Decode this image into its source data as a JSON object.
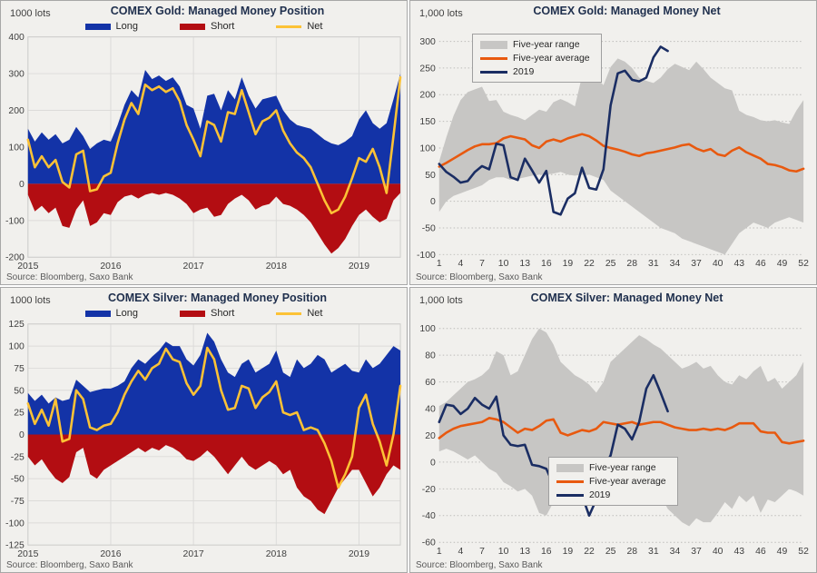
{
  "page": {
    "background": "#ffffff",
    "panel_background": "#f1f0ed",
    "panel_border": "#a7a7a7"
  },
  "colors": {
    "long_blue": "#1333a7",
    "short_red": "#b30d12",
    "net_yellow": "#fcc236",
    "range_gray": "#c7c6c4",
    "avg_orange": "#e8590f",
    "navy_2019": "#1a2d63"
  },
  "chart_data": [
    {
      "type": "area",
      "title": "COMEX Gold: Managed Money Position",
      "unit_label": "1000 lots",
      "source": "Source: Bloomberg, Saxo Bank",
      "grid": "solid",
      "ylim": [
        -200,
        400
      ],
      "y_ticks": [
        400,
        300,
        200,
        100,
        0,
        -100,
        -200
      ],
      "x_ticks": [
        2015,
        2016,
        2017,
        2018,
        2019
      ],
      "x_start": 2015,
      "x_step": 0.0833333,
      "x_end": 2019.5,
      "legend": {
        "style": "row",
        "items": [
          {
            "label": "Long",
            "color": "#1333a7",
            "shape": "box"
          },
          {
            "label": "Short",
            "color": "#b30d12",
            "shape": "box"
          },
          {
            "label": "Net",
            "color": "#fcc236",
            "shape": "line"
          }
        ]
      },
      "series": [
        {
          "name": "Long",
          "kind": "area",
          "color": "#1333a7",
          "values": [
            150,
            115,
            140,
            120,
            135,
            110,
            120,
            155,
            130,
            95,
            110,
            120,
            115,
            160,
            215,
            255,
            235,
            310,
            285,
            295,
            280,
            290,
            265,
            215,
            205,
            150,
            240,
            245,
            200,
            255,
            230,
            290,
            240,
            205,
            230,
            235,
            240,
            200,
            175,
            160,
            155,
            150,
            135,
            120,
            110,
            105,
            115,
            130,
            175,
            200,
            165,
            150,
            165,
            230,
            300
          ]
        },
        {
          "name": "Short",
          "kind": "area",
          "color": "#b30d12",
          "values": [
            -30,
            -75,
            -60,
            -80,
            -65,
            -115,
            -120,
            -70,
            -45,
            -115,
            -105,
            -80,
            -85,
            -50,
            -35,
            -30,
            -40,
            -30,
            -25,
            -30,
            -25,
            -30,
            -40,
            -55,
            -80,
            -70,
            -65,
            -90,
            -85,
            -55,
            -40,
            -30,
            -45,
            -70,
            -60,
            -55,
            -35,
            -55,
            -60,
            -70,
            -85,
            -105,
            -135,
            -165,
            -190,
            -175,
            -150,
            -115,
            -85,
            -70,
            -90,
            -105,
            -95,
            -45,
            -25
          ]
        },
        {
          "name": "Net",
          "kind": "line",
          "color": "#fcc236",
          "width": 2.6,
          "values": [
            120,
            45,
            75,
            45,
            65,
            5,
            -10,
            80,
            90,
            -20,
            -15,
            20,
            30,
            110,
            175,
            220,
            190,
            270,
            255,
            265,
            250,
            260,
            225,
            160,
            120,
            75,
            170,
            160,
            115,
            195,
            190,
            255,
            195,
            135,
            170,
            180,
            200,
            145,
            110,
            85,
            70,
            45,
            0,
            -45,
            -80,
            -70,
            -35,
            15,
            70,
            60,
            95,
            45,
            -25,
            130,
            290
          ]
        }
      ]
    },
    {
      "type": "line",
      "title": "COMEX Gold: Managed Money Net",
      "unit_label": "1,000 lots",
      "source": "Source: Bloomberg, Saxo Bank",
      "grid": "dotted",
      "ylim": [
        -100,
        300
      ],
      "y_ticks": [
        300,
        250,
        200,
        150,
        100,
        50,
        0,
        -50,
        -100
      ],
      "x_ticks": [
        1,
        4,
        7,
        10,
        13,
        16,
        19,
        22,
        25,
        28,
        31,
        34,
        37,
        40,
        43,
        46,
        49,
        52
      ],
      "x_start": 1,
      "x_step": 1,
      "x_end": 52,
      "legend": {
        "style": "box",
        "pos": {
          "left": 68,
          "top": 36
        },
        "items": [
          {
            "label": "Five-year range",
            "color": "#c7c6c4",
            "shape": "box"
          },
          {
            "label": "Five-year average",
            "color": "#e8590f",
            "shape": "line"
          },
          {
            "label": "2019",
            "color": "#1a2d63",
            "shape": "line"
          }
        ]
      },
      "series": [
        {
          "name": "Five-year range",
          "kind": "band",
          "color": "#c7c6c4",
          "upper": [
            75,
            120,
            160,
            190,
            205,
            210,
            215,
            188,
            190,
            168,
            162,
            158,
            152,
            162,
            172,
            168,
            186,
            192,
            186,
            178,
            235,
            228,
            232,
            218,
            252,
            268,
            262,
            250,
            232,
            226,
            222,
            232,
            248,
            258,
            252,
            246,
            262,
            248,
            232,
            222,
            212,
            208,
            170,
            162,
            158,
            152,
            150,
            152,
            148,
            145,
            170,
            190
          ],
          "lower": [
            -20,
            0,
            10,
            15,
            20,
            25,
            30,
            40,
            45,
            45,
            40,
            42,
            45,
            48,
            50,
            50,
            52,
            55,
            50,
            48,
            50,
            50,
            45,
            40,
            20,
            10,
            0,
            -10,
            -20,
            -30,
            -40,
            -50,
            -55,
            -60,
            -70,
            -75,
            -80,
            -85,
            -90,
            -95,
            -100,
            -80,
            -60,
            -50,
            -40,
            -45,
            -50,
            -40,
            -35,
            -30,
            -35,
            -40
          ]
        },
        {
          "name": "Five-year average",
          "kind": "line",
          "color": "#e8590f",
          "width": 2.6,
          "values": [
            65,
            72,
            80,
            88,
            96,
            103,
            107,
            107,
            109,
            118,
            122,
            119,
            116,
            105,
            100,
            112,
            116,
            112,
            118,
            122,
            126,
            122,
            114,
            104,
            100,
            97,
            93,
            88,
            85,
            90,
            92,
            95,
            98,
            101,
            105,
            107,
            99,
            94,
            98,
            88,
            85,
            95,
            101,
            92,
            86,
            80,
            70,
            68,
            64,
            58,
            56,
            61
          ]
        },
        {
          "name": "2019",
          "kind": "line",
          "color": "#1a2d63",
          "width": 2.6,
          "values": [
            70,
            55,
            46,
            35,
            38,
            55,
            66,
            60,
            108,
            105,
            45,
            40,
            80,
            58,
            35,
            57,
            -20,
            -25,
            5,
            15,
            63,
            25,
            22,
            60,
            180,
            240,
            245,
            228,
            225,
            232,
            270,
            290,
            282
          ]
        }
      ]
    },
    {
      "type": "area",
      "title": "COMEX Silver: Managed Money Position",
      "unit_label": "1000 lots",
      "source": "Source: Bloomberg, Saxo Bank",
      "grid": "solid",
      "ylim": [
        -125,
        125
      ],
      "y_ticks": [
        125,
        100,
        75,
        50,
        25,
        0,
        -25,
        -50,
        -75,
        -100,
        -125
      ],
      "x_ticks": [
        2015,
        2016,
        2017,
        2018,
        2019
      ],
      "x_start": 2015,
      "x_step": 0.0833333,
      "x_end": 2019.5,
      "legend": {
        "style": "row",
        "items": [
          {
            "label": "Long",
            "color": "#1333a7",
            "shape": "box"
          },
          {
            "label": "Short",
            "color": "#b30d12",
            "shape": "box"
          },
          {
            "label": "Net",
            "color": "#fcc236",
            "shape": "line"
          }
        ]
      },
      "series": [
        {
          "name": "Long",
          "kind": "area",
          "color": "#1333a7",
          "values": [
            47,
            38,
            45,
            35,
            42,
            38,
            40,
            62,
            55,
            48,
            50,
            52,
            52,
            55,
            60,
            75,
            85,
            80,
            88,
            95,
            105,
            100,
            100,
            85,
            78,
            90,
            115,
            105,
            85,
            70,
            65,
            80,
            85,
            70,
            75,
            80,
            95,
            70,
            65,
            85,
            75,
            80,
            90,
            85,
            70,
            75,
            80,
            72,
            70,
            85,
            75,
            80,
            90,
            100,
            95
          ]
        },
        {
          "name": "Short",
          "kind": "area",
          "color": "#b30d12",
          "values": [
            -25,
            -35,
            -28,
            -40,
            -50,
            -55,
            -48,
            -20,
            -15,
            -45,
            -50,
            -40,
            -35,
            -30,
            -25,
            -20,
            -15,
            -20,
            -15,
            -18,
            -12,
            -15,
            -20,
            -28,
            -30,
            -25,
            -18,
            -25,
            -35,
            -45,
            -35,
            -25,
            -35,
            -40,
            -35,
            -30,
            -35,
            -45,
            -40,
            -60,
            -70,
            -75,
            -85,
            -90,
            -75,
            -60,
            -50,
            -40,
            -40,
            -55,
            -70,
            -60,
            -45,
            -35,
            -40
          ]
        },
        {
          "name": "Net",
          "kind": "line",
          "color": "#fcc236",
          "width": 2.6,
          "values": [
            35,
            12,
            28,
            10,
            40,
            -8,
            -5,
            50,
            40,
            8,
            5,
            10,
            12,
            25,
            45,
            60,
            72,
            62,
            75,
            80,
            97,
            85,
            82,
            58,
            45,
            55,
            98,
            85,
            50,
            28,
            30,
            55,
            52,
            30,
            42,
            48,
            60,
            25,
            22,
            25,
            5,
            8,
            5,
            -10,
            -30,
            -60,
            -45,
            -25,
            30,
            45,
            12,
            -8,
            -35,
            0,
            55
          ]
        }
      ]
    },
    {
      "type": "line",
      "title": "COMEX Silver: Managed Money Net",
      "unit_label": "1,000 lots",
      "source": "Source: Bloomberg, Saxo Bank",
      "grid": "dotted",
      "ylim": [
        -60,
        100
      ],
      "y_ticks": [
        100,
        80,
        60,
        40,
        20,
        0,
        -20,
        -40,
        -60
      ],
      "x_ticks": [
        1,
        4,
        7,
        10,
        13,
        16,
        19,
        22,
        25,
        28,
        31,
        34,
        37,
        40,
        43,
        46,
        49,
        52
      ],
      "x_start": 1,
      "x_step": 1,
      "x_end": 52,
      "legend": {
        "style": "box",
        "pos": {
          "left": 152,
          "top": 186
        },
        "items": [
          {
            "label": "Five-year range",
            "color": "#c7c6c4",
            "shape": "box"
          },
          {
            "label": "Five-year average",
            "color": "#e8590f",
            "shape": "line"
          },
          {
            "label": "2019",
            "color": "#1a2d63",
            "shape": "line"
          }
        ]
      },
      "series": [
        {
          "name": "Five-year range",
          "kind": "band",
          "color": "#c7c6c4",
          "upper": [
            42,
            45,
            50,
            55,
            60,
            62,
            65,
            70,
            83,
            80,
            65,
            68,
            80,
            92,
            100,
            97,
            88,
            75,
            70,
            65,
            62,
            58,
            52,
            60,
            75,
            80,
            85,
            90,
            95,
            92,
            88,
            85,
            80,
            75,
            70,
            72,
            75,
            70,
            72,
            65,
            60,
            58,
            65,
            62,
            68,
            72,
            60,
            63,
            55,
            60,
            65,
            75
          ],
          "lower": [
            8,
            10,
            8,
            5,
            2,
            5,
            0,
            -5,
            -8,
            -15,
            -18,
            -22,
            -20,
            -25,
            -38,
            -40,
            -30,
            0,
            -5,
            -15,
            -20,
            -28,
            -22,
            -15,
            -10,
            -15,
            -20,
            -18,
            -15,
            -18,
            -20,
            -25,
            -35,
            -40,
            -45,
            -48,
            -42,
            -45,
            -45,
            -38,
            -30,
            -35,
            -25,
            -30,
            -25,
            -38,
            -28,
            -30,
            -25,
            -20,
            -22,
            -25
          ]
        },
        {
          "name": "Five-year average",
          "kind": "line",
          "color": "#e8590f",
          "width": 2.6,
          "values": [
            18,
            22,
            25,
            27,
            28,
            29,
            30,
            33,
            32,
            30,
            26,
            22,
            25,
            24,
            27,
            31,
            32,
            22,
            20,
            22,
            24,
            23,
            25,
            30,
            29,
            28,
            29,
            30,
            28,
            29,
            30,
            30,
            28,
            26,
            25,
            24,
            24,
            25,
            24,
            25,
            24,
            26,
            29,
            29,
            29,
            23,
            22,
            22,
            15,
            14,
            15,
            16
          ]
        },
        {
          "name": "2019",
          "kind": "line",
          "color": "#1a2d63",
          "width": 2.6,
          "values": [
            30,
            43,
            42,
            36,
            40,
            48,
            43,
            40,
            49,
            20,
            13,
            12,
            13,
            -2,
            -3,
            -5,
            -17,
            -15,
            -14,
            -15,
            -25,
            -40,
            -28,
            -5,
            5,
            28,
            25,
            17,
            30,
            55,
            65,
            52,
            38
          ]
        }
      ]
    }
  ]
}
